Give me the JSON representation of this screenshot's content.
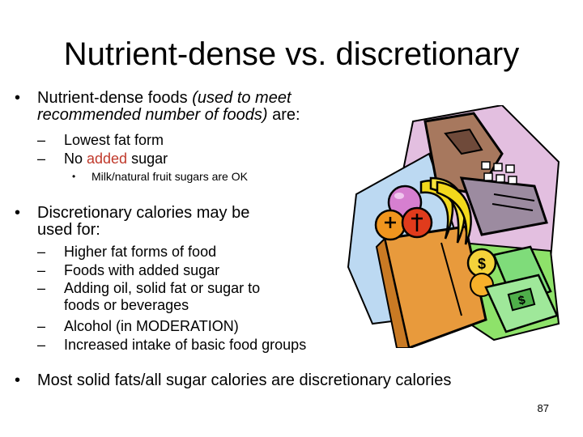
{
  "slide": {
    "title": "Nutrient-dense vs. discretionary",
    "bullet1": {
      "marker": "•",
      "text": "Nutrient-dense foods ",
      "italic": "(used to meet recommended number of foods)",
      "suffix": " are:",
      "subs": [
        {
          "marker": "–",
          "text": "Lowest fat form"
        },
        {
          "marker": "–",
          "pre": "No ",
          "highlight": "added",
          "post": " sugar"
        }
      ],
      "subsub": {
        "marker": "•",
        "text": "Milk/natural fruit sugars are OK"
      }
    },
    "bullet2": {
      "marker": "•",
      "text": "Discretionary calories may be used for:",
      "subs": [
        {
          "marker": "–",
          "text": "Higher fat forms of food"
        },
        {
          "marker": "–",
          "text": "Foods with added sugar"
        },
        {
          "marker": "–",
          "text": "Adding oil, solid fat or sugar to foods or beverages"
        },
        {
          "marker": "–",
          "text": "Alcohol (in MODERATION)"
        },
        {
          "marker": "–",
          "text": "Increased intake of basic food groups"
        }
      ]
    },
    "bullet3": {
      "marker": "•",
      "text": "Most solid fats/all sugar calories are discretionary calories"
    },
    "page_number": "87"
  },
  "colors": {
    "highlight": "#c0392b"
  },
  "clipart": {
    "icon": "grocery-register-money-icon"
  }
}
